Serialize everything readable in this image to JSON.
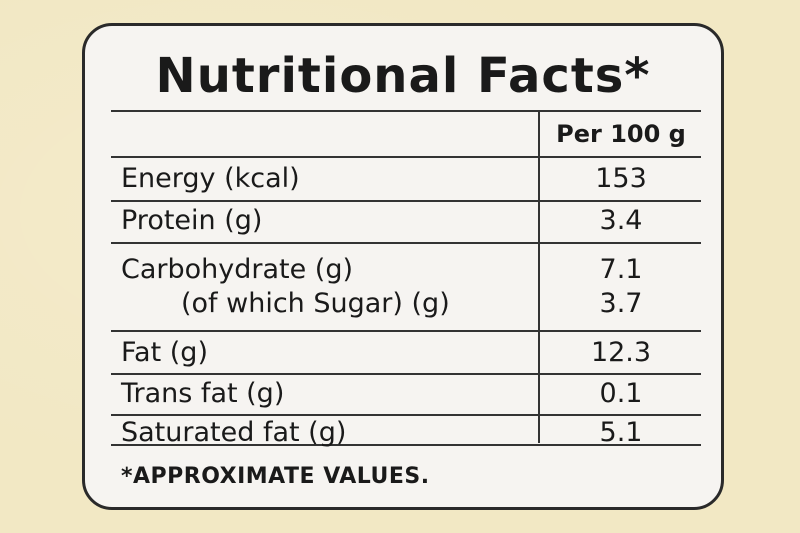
{
  "title": "Nutritional Facts*",
  "header": {
    "per_label": "Per 100 g"
  },
  "rows": [
    {
      "label": "Energy (kcal)",
      "value": "153"
    },
    {
      "label": "Protein (g)",
      "value": "3.4"
    },
    {
      "label": "Carbohydrate (g)",
      "value": "7.1"
    },
    {
      "label": "(of which Sugar) (g)",
      "value": "3.7"
    },
    {
      "label": "Fat (g)",
      "value": "12.3"
    },
    {
      "label": "Trans fat (g)",
      "value": "0.1"
    },
    {
      "label": "Saturated fat (g)",
      "value": "5.1"
    }
  ],
  "footnote": "*APPROXIMATE VALUES.",
  "colors": {
    "background": "#f2e8c4",
    "panel": "#f6f4f1",
    "ink": "#1a1a1a"
  }
}
